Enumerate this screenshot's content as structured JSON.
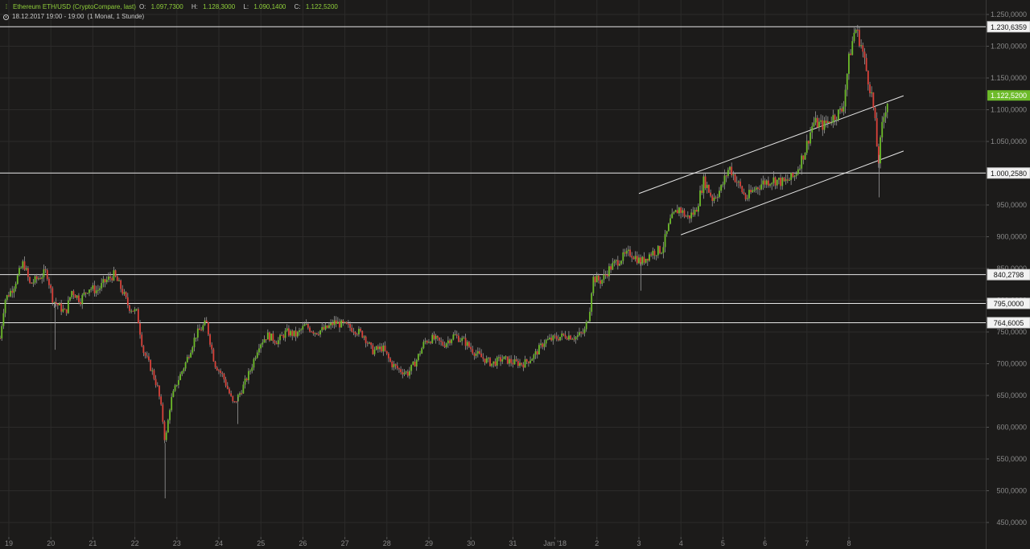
{
  "header": {
    "instrument": "Ethereum ETH/USD (CryptoCompare, last)",
    "ohlc": [
      {
        "key": "O:",
        "value": "1.097,7300"
      },
      {
        "key": "H:",
        "value": "1.128,3000"
      },
      {
        "key": "L:",
        "value": "1.090,1400"
      },
      {
        "key": "C:",
        "value": "1.122,5200"
      }
    ],
    "range": "18.12.2017 19:00 - 19:00",
    "period": "(1 Monat, 1 Stunde)"
  },
  "colors": {
    "background": "#1c1b1a",
    "grid": "#2c2b2a",
    "up": "#6dbb2a",
    "down": "#d9423a",
    "wick": "#9a9a9a",
    "line": "#e6e6e6",
    "axis_text": "#8a8a8a",
    "price_badge": "#6dbb2a"
  },
  "chart_data": {
    "type": "candlestick",
    "ylim": [
      450,
      1250
    ],
    "y_ticks": [
      450,
      500,
      550,
      600,
      650,
      700,
      750,
      800,
      850,
      900,
      950,
      1000,
      1050,
      1100,
      1150,
      1200,
      1250
    ],
    "y_tick_labels": [
      "450,0000",
      "500,0000",
      "550,0000",
      "600,0000",
      "650,0000",
      "700,0000",
      "750,0000",
      "800,0000",
      "850,0000",
      "900,0000",
      "950,0000",
      "1.000,0000",
      "1.050,0000",
      "1.100,0000",
      "1.150,0000",
      "1.200,0000",
      "1.250,0000"
    ],
    "x_ticks": [
      {
        "day": 1,
        "label": "19"
      },
      {
        "day": 2,
        "label": "20"
      },
      {
        "day": 3,
        "label": "21"
      },
      {
        "day": 4,
        "label": "22"
      },
      {
        "day": 5,
        "label": "23"
      },
      {
        "day": 6,
        "label": "24"
      },
      {
        "day": 7,
        "label": "25"
      },
      {
        "day": 8,
        "label": "26"
      },
      {
        "day": 9,
        "label": "27"
      },
      {
        "day": 10,
        "label": "28"
      },
      {
        "day": 11,
        "label": "29"
      },
      {
        "day": 12,
        "label": "30"
      },
      {
        "day": 13,
        "label": "31"
      },
      {
        "day": 14,
        "label": "Jan '18"
      },
      {
        "day": 15,
        "label": "2"
      },
      {
        "day": 16,
        "label": "3"
      },
      {
        "day": 17,
        "label": "4"
      },
      {
        "day": 18,
        "label": "5"
      },
      {
        "day": 19,
        "label": "6"
      },
      {
        "day": 20,
        "label": "7"
      },
      {
        "day": 21,
        "label": "8"
      }
    ],
    "xlim_days": [
      0.79,
      22.3
    ],
    "horizontal_levels": [
      {
        "value": 1230.6359,
        "label": "1.230,6359"
      },
      {
        "value": 1000.258,
        "label": "1.000,2580"
      },
      {
        "value": 840.2798,
        "label": "840,2798"
      },
      {
        "value": 795.0,
        "label": "795,0000"
      },
      {
        "value": 764.6005,
        "label": "764,6005"
      }
    ],
    "last_price": {
      "value": 1122.52,
      "label": "1.122,5200"
    },
    "trend_lines": [
      {
        "x1": 16.0,
        "y1": 968,
        "x2": 22.3,
        "y2": 1122
      },
      {
        "x1": 17.0,
        "y1": 903,
        "x2": 22.3,
        "y2": 1035
      }
    ],
    "close_path": [
      [
        0.79,
        740
      ],
      [
        0.9,
        800
      ],
      [
        1.1,
        820
      ],
      [
        1.35,
        860
      ],
      [
        1.5,
        825
      ],
      [
        1.7,
        835
      ],
      [
        1.9,
        845
      ],
      [
        2.05,
        800
      ],
      [
        2.2,
        790
      ],
      [
        2.35,
        780
      ],
      [
        2.5,
        815
      ],
      [
        2.7,
        800
      ],
      [
        2.9,
        820
      ],
      [
        3.1,
        815
      ],
      [
        3.3,
        830
      ],
      [
        3.5,
        840
      ],
      [
        3.7,
        815
      ],
      [
        3.85,
        790
      ],
      [
        4.05,
        780
      ],
      [
        4.2,
        720
      ],
      [
        4.4,
        690
      ],
      [
        4.55,
        660
      ],
      [
        4.65,
        620
      ],
      [
        4.72,
        575
      ],
      [
        4.85,
        640
      ],
      [
        5.0,
        670
      ],
      [
        5.2,
        700
      ],
      [
        5.45,
        745
      ],
      [
        5.7,
        765
      ],
      [
        5.9,
        700
      ],
      [
        6.1,
        680
      ],
      [
        6.35,
        635
      ],
      [
        6.55,
        660
      ],
      [
        6.75,
        690
      ],
      [
        6.95,
        730
      ],
      [
        7.15,
        745
      ],
      [
        7.4,
        735
      ],
      [
        7.6,
        750
      ],
      [
        7.85,
        745
      ],
      [
        8.05,
        760
      ],
      [
        8.3,
        750
      ],
      [
        8.55,
        755
      ],
      [
        8.75,
        765
      ],
      [
        9.0,
        760
      ],
      [
        9.2,
        755
      ],
      [
        9.45,
        745
      ],
      [
        9.65,
        720
      ],
      [
        9.9,
        725
      ],
      [
        10.1,
        700
      ],
      [
        10.3,
        690
      ],
      [
        10.5,
        685
      ],
      [
        10.7,
        705
      ],
      [
        10.9,
        735
      ],
      [
        11.1,
        740
      ],
      [
        11.35,
        730
      ],
      [
        11.6,
        745
      ],
      [
        11.85,
        735
      ],
      [
        12.05,
        720
      ],
      [
        12.25,
        710
      ],
      [
        12.5,
        700
      ],
      [
        12.75,
        708
      ],
      [
        13.0,
        702
      ],
      [
        13.25,
        700
      ],
      [
        13.5,
        712
      ],
      [
        13.75,
        735
      ],
      [
        14.0,
        740
      ],
      [
        14.25,
        745
      ],
      [
        14.5,
        742
      ],
      [
        14.7,
        750
      ],
      [
        14.82,
        780
      ],
      [
        14.9,
        835
      ],
      [
        15.1,
        830
      ],
      [
        15.3,
        850
      ],
      [
        15.55,
        865
      ],
      [
        15.8,
        875
      ],
      [
        16.05,
        860
      ],
      [
        16.3,
        875
      ],
      [
        16.55,
        880
      ],
      [
        16.75,
        925
      ],
      [
        16.95,
        945
      ],
      [
        17.15,
        930
      ],
      [
        17.35,
        940
      ],
      [
        17.55,
        990
      ],
      [
        17.75,
        960
      ],
      [
        17.95,
        975
      ],
      [
        18.15,
        1010
      ],
      [
        18.35,
        985
      ],
      [
        18.55,
        960
      ],
      [
        18.75,
        975
      ],
      [
        18.95,
        985
      ],
      [
        19.2,
        990
      ],
      [
        19.45,
        985
      ],
      [
        19.7,
        995
      ],
      [
        19.95,
        1035
      ],
      [
        20.15,
        1080
      ],
      [
        20.4,
        1075
      ],
      [
        20.65,
        1090
      ],
      [
        20.85,
        1100
      ],
      [
        21.0,
        1180
      ],
      [
        21.15,
        1230
      ],
      [
        21.3,
        1200
      ],
      [
        21.45,
        1150
      ],
      [
        21.55,
        1120
      ],
      [
        21.62,
        1080
      ],
      [
        21.7,
        1015
      ],
      [
        21.78,
        1070
      ],
      [
        21.86,
        1100
      ],
      [
        21.95,
        1122.52
      ]
    ]
  }
}
